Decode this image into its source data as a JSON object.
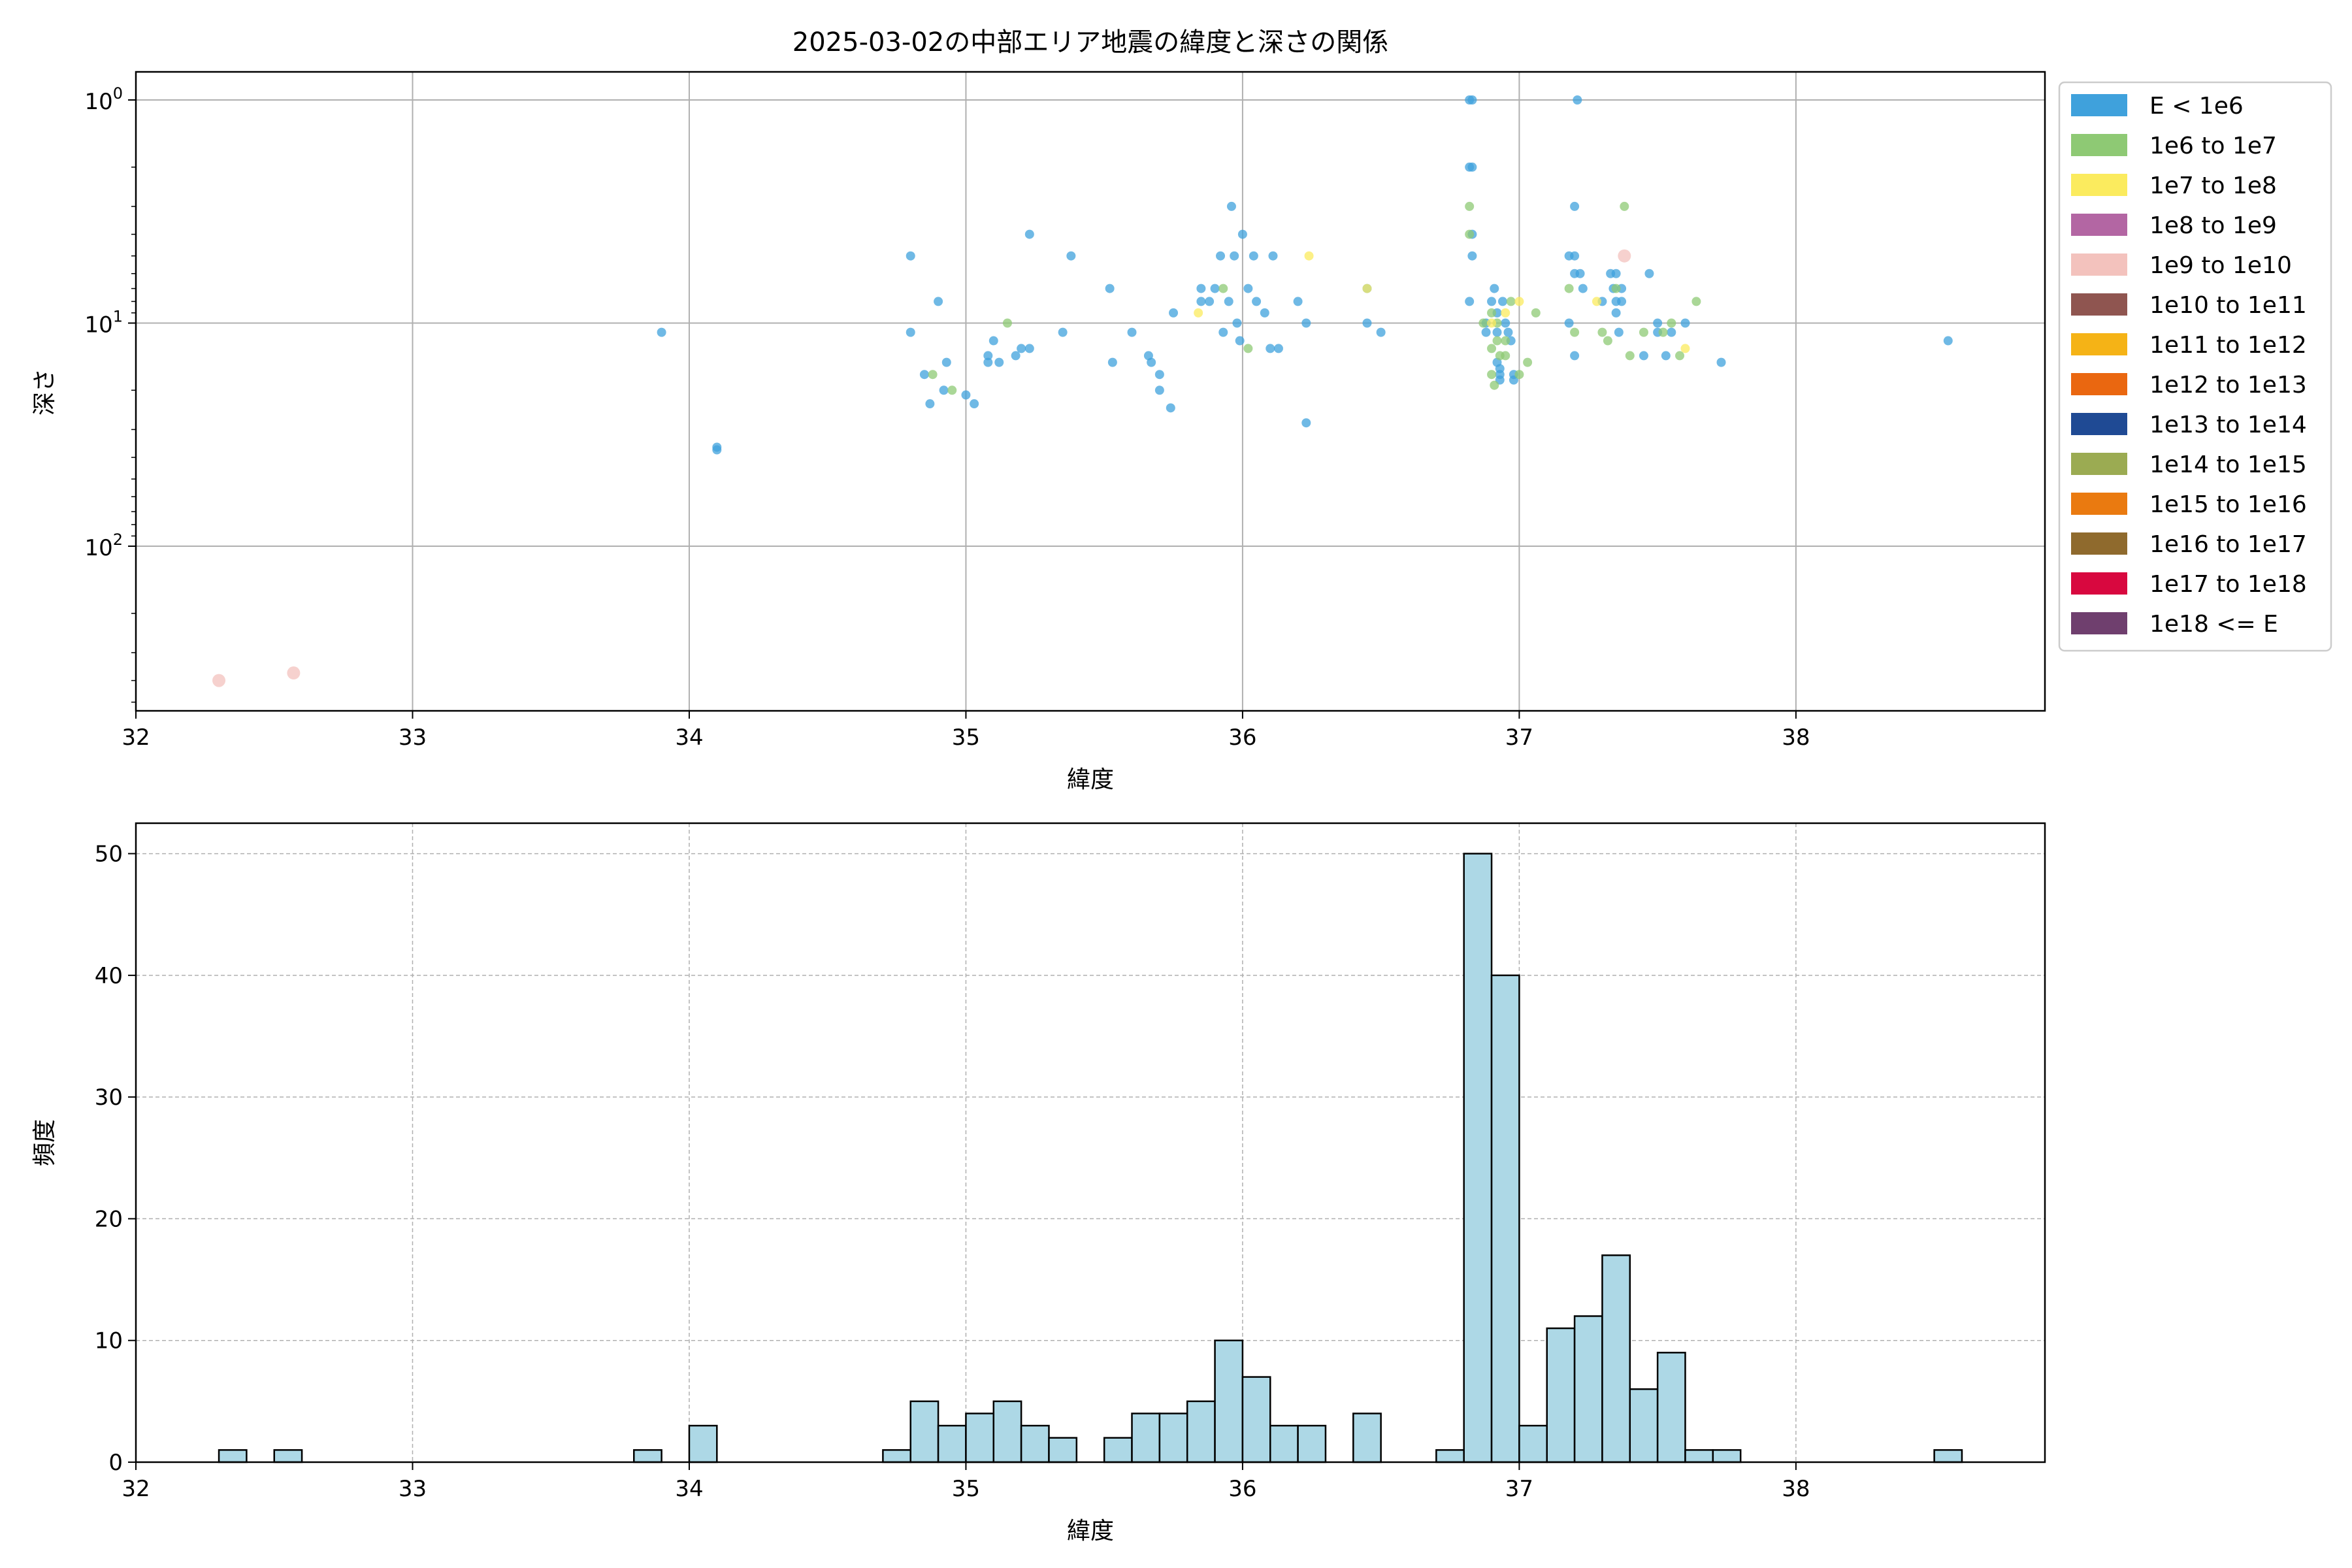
{
  "chart_data": [
    {
      "type": "scatter",
      "title": "2025-03-02の中部エリア地震の緯度と深さの関係",
      "xlabel": "緯度",
      "ylabel": "深さ",
      "xlim": [
        32,
        38.9
      ],
      "x_ticks": [
        "32",
        "33",
        "34",
        "35",
        "36",
        "37",
        "38"
      ],
      "y_scale": "log",
      "y_inverted": true,
      "ylim": [
        1,
        580
      ],
      "y_ticks": [
        {
          "value": 1,
          "base": "10",
          "exp": "0"
        },
        {
          "value": 10,
          "base": "10",
          "exp": "1"
        },
        {
          "value": 100,
          "base": "10",
          "exp": "2"
        }
      ],
      "grid": true,
      "legend_position": "outside-right",
      "legend": [
        {
          "label": "E < 1e6",
          "color": "#3fa1dc"
        },
        {
          "label": "1e6 to 1e7",
          "color": "#8ec974"
        },
        {
          "label": "1e7 to 1e8",
          "color": "#fbeb5e"
        },
        {
          "label": "1e8 to 1e9",
          "color": "#b366a3"
        },
        {
          "label": "1e9 to 1e10",
          "color": "#f3c2bd"
        },
        {
          "label": "1e10 to 1e11",
          "color": "#8f5550"
        },
        {
          "label": "1e11 to 1e12",
          "color": "#f5b316"
        },
        {
          "label": "1e12 to 1e13",
          "color": "#ea6710"
        },
        {
          "label": "1e13 to 1e14",
          "color": "#1f4a94"
        },
        {
          "label": "1e14 to 1e15",
          "color": "#9bab52"
        },
        {
          "label": "1e15 to 1e16",
          "color": "#ea7a10"
        },
        {
          "label": "1e16 to 1e17",
          "color": "#8f6a2d"
        },
        {
          "label": "1e17 to 1e18",
          "color": "#d8083f"
        },
        {
          "label": "1e18 <= E",
          "color": "#6f3f6e"
        }
      ],
      "series": [
        {
          "color": "#3fa1dc",
          "points": [
            [
              33.9,
              11
            ],
            [
              34.1,
              36
            ],
            [
              34.1,
              37
            ],
            [
              34.8,
              5
            ],
            [
              34.8,
              11
            ],
            [
              34.85,
              17
            ],
            [
              34.87,
              23
            ],
            [
              34.9,
              8
            ],
            [
              34.92,
              20
            ],
            [
              34.93,
              15
            ],
            [
              35.0,
              21
            ],
            [
              35.03,
              23
            ],
            [
              35.08,
              14
            ],
            [
              35.08,
              15
            ],
            [
              35.1,
              12
            ],
            [
              35.12,
              15
            ],
            [
              35.18,
              14
            ],
            [
              35.2,
              13
            ],
            [
              35.23,
              13
            ],
            [
              35.23,
              4
            ],
            [
              35.35,
              11
            ],
            [
              35.38,
              5
            ],
            [
              35.52,
              7
            ],
            [
              35.53,
              15
            ],
            [
              35.6,
              11
            ],
            [
              35.66,
              14
            ],
            [
              35.67,
              15
            ],
            [
              35.7,
              17
            ],
            [
              35.7,
              20
            ],
            [
              35.74,
              24
            ],
            [
              35.75,
              9
            ],
            [
              35.85,
              7
            ],
            [
              35.85,
              8
            ],
            [
              35.88,
              8
            ],
            [
              35.9,
              7
            ],
            [
              35.92,
              5
            ],
            [
              35.93,
              11
            ],
            [
              35.95,
              8
            ],
            [
              35.96,
              3
            ],
            [
              35.97,
              5
            ],
            [
              35.98,
              10
            ],
            [
              35.99,
              12
            ],
            [
              36.0,
              4
            ],
            [
              36.02,
              7
            ],
            [
              36.04,
              5
            ],
            [
              36.05,
              8
            ],
            [
              36.08,
              9
            ],
            [
              36.1,
              13
            ],
            [
              36.11,
              5
            ],
            [
              36.13,
              13
            ],
            [
              36.2,
              8
            ],
            [
              36.23,
              10
            ],
            [
              36.23,
              28
            ],
            [
              36.45,
              7
            ],
            [
              36.45,
              10
            ],
            [
              36.5,
              11
            ],
            [
              36.82,
              1
            ],
            [
              36.83,
              1
            ],
            [
              36.82,
              2
            ],
            [
              36.83,
              2
            ],
            [
              36.83,
              4
            ],
            [
              36.83,
              5
            ],
            [
              36.82,
              8
            ],
            [
              36.88,
              10
            ],
            [
              36.88,
              11
            ],
            [
              36.9,
              8
            ],
            [
              36.91,
              7
            ],
            [
              36.92,
              9
            ],
            [
              36.92,
              11
            ],
            [
              36.92,
              15
            ],
            [
              36.93,
              16
            ],
            [
              36.93,
              17
            ],
            [
              36.93,
              18
            ],
            [
              36.94,
              8
            ],
            [
              36.95,
              10
            ],
            [
              36.96,
              11
            ],
            [
              36.97,
              12
            ],
            [
              36.98,
              17
            ],
            [
              36.98,
              18
            ],
            [
              37.18,
              5
            ],
            [
              37.18,
              10
            ],
            [
              37.2,
              3
            ],
            [
              37.2,
              5
            ],
            [
              37.2,
              6
            ],
            [
              37.2,
              14
            ],
            [
              37.21,
              1
            ],
            [
              37.22,
              6
            ],
            [
              37.23,
              7
            ],
            [
              37.3,
              8
            ],
            [
              37.33,
              6
            ],
            [
              37.34,
              7
            ],
            [
              37.35,
              6
            ],
            [
              37.35,
              8
            ],
            [
              37.35,
              9
            ],
            [
              37.36,
              11
            ],
            [
              37.37,
              7
            ],
            [
              37.37,
              8
            ],
            [
              37.45,
              14
            ],
            [
              37.47,
              6
            ],
            [
              37.5,
              10
            ],
            [
              37.5,
              11
            ],
            [
              37.53,
              14
            ],
            [
              37.55,
              11
            ],
            [
              37.6,
              10
            ],
            [
              37.73,
              15
            ],
            [
              38.55,
              12
            ]
          ]
        },
        {
          "color": "#8ec974",
          "points": [
            [
              34.88,
              17
            ],
            [
              34.95,
              20
            ],
            [
              35.15,
              10
            ],
            [
              35.93,
              7
            ],
            [
              36.02,
              13
            ],
            [
              36.82,
              3
            ],
            [
              36.82,
              4
            ],
            [
              36.87,
              10
            ],
            [
              36.9,
              9
            ],
            [
              36.9,
              13
            ],
            [
              36.9,
              17
            ],
            [
              36.91,
              19
            ],
            [
              36.92,
              10
            ],
            [
              36.92,
              12
            ],
            [
              36.93,
              14
            ],
            [
              36.95,
              12
            ],
            [
              36.95,
              14
            ],
            [
              36.97,
              8
            ],
            [
              37.0,
              17
            ],
            [
              37.03,
              15
            ],
            [
              37.06,
              9
            ],
            [
              37.18,
              7
            ],
            [
              37.2,
              11
            ],
            [
              37.3,
              11
            ],
            [
              37.32,
              12
            ],
            [
              37.35,
              7
            ],
            [
              37.38,
              3
            ],
            [
              37.4,
              14
            ],
            [
              37.45,
              11
            ],
            [
              37.52,
              11
            ],
            [
              37.55,
              10
            ],
            [
              37.58,
              14
            ],
            [
              37.64,
              8
            ]
          ]
        },
        {
          "color": "#fbeb5e",
          "points": [
            [
              35.84,
              9
            ],
            [
              36.24,
              5
            ],
            [
              36.45,
              7
            ],
            [
              36.9,
              10
            ],
            [
              36.95,
              9
            ],
            [
              37.0,
              8
            ],
            [
              37.28,
              8
            ],
            [
              37.6,
              13
            ]
          ]
        },
        {
          "color": "#f3c2bd",
          "big": true,
          "points": [
            [
              32.3,
              400
            ],
            [
              32.57,
              370
            ],
            [
              37.38,
              5
            ]
          ]
        }
      ]
    },
    {
      "type": "bar",
      "xlabel": "緯度",
      "ylabel": "頻度",
      "xlim": [
        32,
        38.9
      ],
      "ylim": [
        0,
        52.5
      ],
      "x_ticks": [
        "32",
        "33",
        "34",
        "35",
        "36",
        "37",
        "38"
      ],
      "y_ticks": [
        "0",
        "10",
        "20",
        "30",
        "40",
        "50"
      ],
      "grid": true,
      "bin_width": 0.1,
      "bar_color": "#add8e6",
      "bins": [
        [
          32.3,
          1
        ],
        [
          32.5,
          1
        ],
        [
          33.8,
          1
        ],
        [
          34.0,
          3
        ],
        [
          34.7,
          1
        ],
        [
          34.8,
          5
        ],
        [
          34.9,
          3
        ],
        [
          35.0,
          4
        ],
        [
          35.1,
          5
        ],
        [
          35.2,
          3
        ],
        [
          35.3,
          2
        ],
        [
          35.5,
          2
        ],
        [
          35.6,
          4
        ],
        [
          35.7,
          4
        ],
        [
          35.8,
          5
        ],
        [
          35.9,
          10
        ],
        [
          36.0,
          7
        ],
        [
          36.1,
          3
        ],
        [
          36.2,
          3
        ],
        [
          36.4,
          4
        ],
        [
          36.7,
          1
        ],
        [
          36.8,
          50
        ],
        [
          36.9,
          40
        ],
        [
          37.0,
          3
        ],
        [
          37.1,
          11
        ],
        [
          37.2,
          12
        ],
        [
          37.3,
          17
        ],
        [
          37.4,
          6
        ],
        [
          37.5,
          9
        ],
        [
          37.6,
          1
        ],
        [
          37.7,
          1
        ],
        [
          38.5,
          1
        ]
      ]
    }
  ]
}
